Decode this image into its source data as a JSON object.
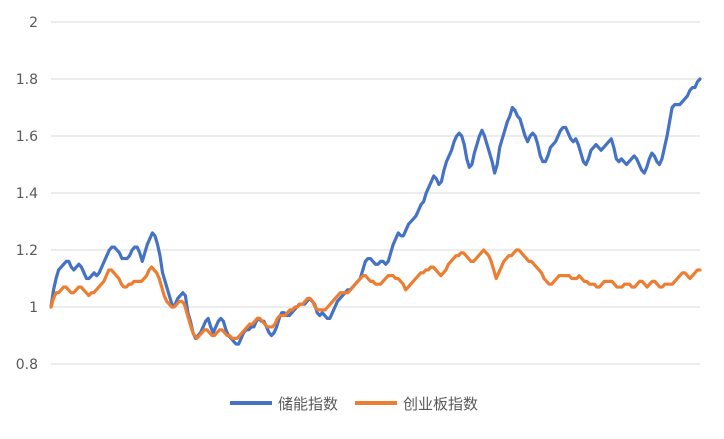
{
  "chart_data": {
    "type": "line",
    "title": "",
    "xlabel": "",
    "ylabel": "",
    "ylim": [
      0.8,
      2.0
    ],
    "yticks": [
      "0.8",
      "1",
      "1.2",
      "1.4",
      "1.6",
      "1.8",
      "2"
    ],
    "grid": "horizontal",
    "legend_position": "bottom",
    "series": [
      {
        "name": "储能指数",
        "color": "#4472C4",
        "values": [
          1.0,
          1.06,
          1.1,
          1.13,
          1.14,
          1.15,
          1.16,
          1.16,
          1.14,
          1.13,
          1.14,
          1.15,
          1.14,
          1.12,
          1.1,
          1.1,
          1.11,
          1.12,
          1.11,
          1.12,
          1.14,
          1.16,
          1.18,
          1.2,
          1.21,
          1.21,
          1.2,
          1.19,
          1.17,
          1.17,
          1.17,
          1.18,
          1.2,
          1.21,
          1.21,
          1.19,
          1.16,
          1.19,
          1.22,
          1.24,
          1.26,
          1.25,
          1.22,
          1.18,
          1.12,
          1.09,
          1.06,
          1.03,
          1.0,
          1.01,
          1.03,
          1.04,
          1.05,
          1.04,
          0.98,
          0.95,
          0.91,
          0.89,
          0.9,
          0.91,
          0.93,
          0.95,
          0.96,
          0.93,
          0.91,
          0.93,
          0.95,
          0.96,
          0.95,
          0.92,
          0.9,
          0.89,
          0.88,
          0.87,
          0.87,
          0.89,
          0.91,
          0.92,
          0.92,
          0.93,
          0.93,
          0.95,
          0.96,
          0.95,
          0.95,
          0.93,
          0.91,
          0.9,
          0.91,
          0.93,
          0.96,
          0.98,
          0.98,
          0.97,
          0.97,
          0.98,
          0.99,
          1.0,
          1.01,
          1.01,
          1.01,
          1.02,
          1.03,
          1.02,
          1.01,
          0.98,
          0.97,
          0.98,
          0.97,
          0.96,
          0.96,
          0.98,
          1.0,
          1.02,
          1.03,
          1.04,
          1.05,
          1.06,
          1.06,
          1.07,
          1.08,
          1.09,
          1.1,
          1.13,
          1.16,
          1.17,
          1.17,
          1.16,
          1.15,
          1.15,
          1.16,
          1.16,
          1.15,
          1.16,
          1.19,
          1.22,
          1.24,
          1.26,
          1.25,
          1.25,
          1.27,
          1.29,
          1.3,
          1.31,
          1.32,
          1.34,
          1.36,
          1.37,
          1.4,
          1.42,
          1.44,
          1.46,
          1.45,
          1.43,
          1.44,
          1.48,
          1.51,
          1.53,
          1.55,
          1.58,
          1.6,
          1.61,
          1.6,
          1.57,
          1.52,
          1.49,
          1.5,
          1.54,
          1.57,
          1.6,
          1.62,
          1.6,
          1.57,
          1.54,
          1.51,
          1.47,
          1.5,
          1.56,
          1.59,
          1.62,
          1.65,
          1.67,
          1.7,
          1.69,
          1.67,
          1.66,
          1.63,
          1.6,
          1.58,
          1.6,
          1.61,
          1.6,
          1.57,
          1.53,
          1.51,
          1.51,
          1.53,
          1.56,
          1.57,
          1.58,
          1.6,
          1.62,
          1.63,
          1.63,
          1.61,
          1.59,
          1.58,
          1.59,
          1.57,
          1.54,
          1.51,
          1.5,
          1.52,
          1.55,
          1.56,
          1.57,
          1.56,
          1.55,
          1.56,
          1.57,
          1.58,
          1.59,
          1.56,
          1.52,
          1.51,
          1.52,
          1.51,
          1.5,
          1.51,
          1.52,
          1.53,
          1.52,
          1.5,
          1.48,
          1.47,
          1.49,
          1.52,
          1.54,
          1.53,
          1.51,
          1.5,
          1.52,
          1.56,
          1.6,
          1.65,
          1.7,
          1.71,
          1.71,
          1.71,
          1.72,
          1.73,
          1.74,
          1.76,
          1.77,
          1.77,
          1.79,
          1.8
        ]
      },
      {
        "name": "创业板指数",
        "color": "#ED7D31",
        "values": [
          1.0,
          1.03,
          1.05,
          1.05,
          1.06,
          1.07,
          1.07,
          1.06,
          1.05,
          1.05,
          1.06,
          1.07,
          1.07,
          1.06,
          1.05,
          1.04,
          1.05,
          1.05,
          1.06,
          1.07,
          1.08,
          1.09,
          1.11,
          1.13,
          1.13,
          1.12,
          1.11,
          1.1,
          1.08,
          1.07,
          1.07,
          1.08,
          1.08,
          1.09,
          1.09,
          1.09,
          1.09,
          1.1,
          1.11,
          1.13,
          1.14,
          1.13,
          1.12,
          1.1,
          1.07,
          1.04,
          1.02,
          1.01,
          1.0,
          1.0,
          1.01,
          1.02,
          1.02,
          1.01,
          0.98,
          0.95,
          0.92,
          0.9,
          0.89,
          0.9,
          0.91,
          0.92,
          0.92,
          0.91,
          0.9,
          0.9,
          0.91,
          0.92,
          0.92,
          0.91,
          0.9,
          0.9,
          0.89,
          0.89,
          0.89,
          0.9,
          0.91,
          0.92,
          0.93,
          0.94,
          0.94,
          0.95,
          0.96,
          0.96,
          0.95,
          0.94,
          0.93,
          0.93,
          0.93,
          0.94,
          0.96,
          0.97,
          0.97,
          0.97,
          0.98,
          0.99,
          0.99,
          1.0,
          1.0,
          1.01,
          1.01,
          1.02,
          1.03,
          1.03,
          1.02,
          1.0,
          0.99,
          0.99,
          0.99,
          0.99,
          1.0,
          1.01,
          1.02,
          1.03,
          1.04,
          1.05,
          1.05,
          1.05,
          1.05,
          1.06,
          1.07,
          1.08,
          1.09,
          1.1,
          1.11,
          1.11,
          1.1,
          1.09,
          1.09,
          1.08,
          1.08,
          1.08,
          1.09,
          1.1,
          1.11,
          1.11,
          1.11,
          1.1,
          1.1,
          1.09,
          1.08,
          1.06,
          1.07,
          1.08,
          1.09,
          1.1,
          1.11,
          1.12,
          1.12,
          1.13,
          1.13,
          1.14,
          1.14,
          1.13,
          1.12,
          1.11,
          1.12,
          1.13,
          1.15,
          1.16,
          1.17,
          1.18,
          1.18,
          1.19,
          1.19,
          1.18,
          1.17,
          1.16,
          1.16,
          1.17,
          1.18,
          1.19,
          1.2,
          1.19,
          1.18,
          1.16,
          1.13,
          1.1,
          1.12,
          1.14,
          1.16,
          1.17,
          1.18,
          1.18,
          1.19,
          1.2,
          1.2,
          1.19,
          1.18,
          1.17,
          1.16,
          1.16,
          1.15,
          1.14,
          1.13,
          1.12,
          1.1,
          1.09,
          1.08,
          1.08,
          1.09,
          1.1,
          1.11,
          1.11,
          1.11,
          1.11,
          1.11,
          1.1,
          1.1,
          1.1,
          1.11,
          1.1,
          1.09,
          1.09,
          1.08,
          1.08,
          1.08,
          1.07,
          1.07,
          1.08,
          1.09,
          1.09,
          1.09,
          1.09,
          1.08,
          1.07,
          1.07,
          1.07,
          1.08,
          1.08,
          1.08,
          1.07,
          1.07,
          1.08,
          1.09,
          1.09,
          1.08,
          1.07,
          1.08,
          1.09,
          1.09,
          1.08,
          1.07,
          1.07,
          1.08,
          1.08,
          1.08,
          1.08,
          1.09,
          1.1,
          1.11,
          1.12,
          1.12,
          1.11,
          1.1,
          1.11,
          1.12,
          1.13,
          1.13
        ]
      }
    ]
  }
}
